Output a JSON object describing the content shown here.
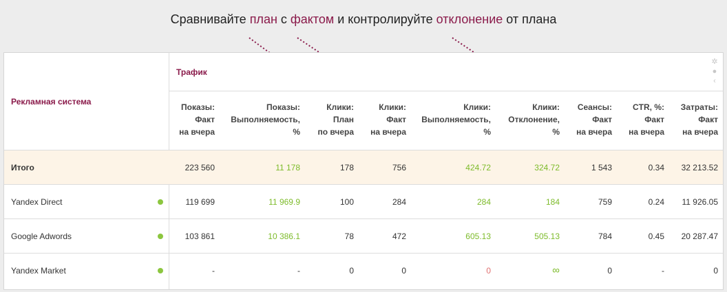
{
  "caption": {
    "p1": "Сравнивайте ",
    "h1": "план",
    "p2": " с ",
    "h2": "фактом",
    "p3": " и контролируйте ",
    "h3": "отклонение",
    "p4": " от плана"
  },
  "table": {
    "row_header": "Рекламная система",
    "group_header": "Трафик",
    "columns": [
      "Показы:\nФакт\nна вчера",
      "Показы:\nВыполняемость,\n%",
      "Клики:\nПлан\nпо вчера",
      "Клики:\nФакт\nна вчера",
      "Клики:\nВыполняемость,\n%",
      "Клики:\nОтклонение,\n%",
      "Сеансы:\nФакт\nна вчера",
      "CTR, %:\nФакт\nна вчера",
      "Затраты:\nФакт\nна вчера"
    ],
    "rows": [
      {
        "name": "Итого",
        "values": [
          "223 560",
          "11 178",
          "178",
          "756",
          "424.72",
          "324.72",
          "1 543",
          "0.34",
          "32 213.52"
        ]
      },
      {
        "name": "Yandex Direct",
        "values": [
          "119 699",
          "11 969.9",
          "100",
          "284",
          "284",
          "184",
          "759",
          "0.24",
          "11 926.05"
        ]
      },
      {
        "name": "Google Adwords",
        "values": [
          "103 861",
          "10 386.1",
          "78",
          "472",
          "605.13",
          "505.13",
          "784",
          "0.45",
          "20 287.47"
        ]
      },
      {
        "name": "Yandex Market",
        "values": [
          "-",
          "-",
          "0",
          "0",
          "0",
          "∞",
          "0",
          "-",
          "0"
        ]
      }
    ]
  },
  "colors": {
    "accent": "#8a1a4a",
    "positive": "#7dbb2a",
    "negative": "#e07070",
    "total_row_bg": "#fdf4e7",
    "status_dot": "#8cc63f"
  },
  "icons": [
    "gear-icon",
    "help-icon",
    "chevron-left-icon"
  ]
}
